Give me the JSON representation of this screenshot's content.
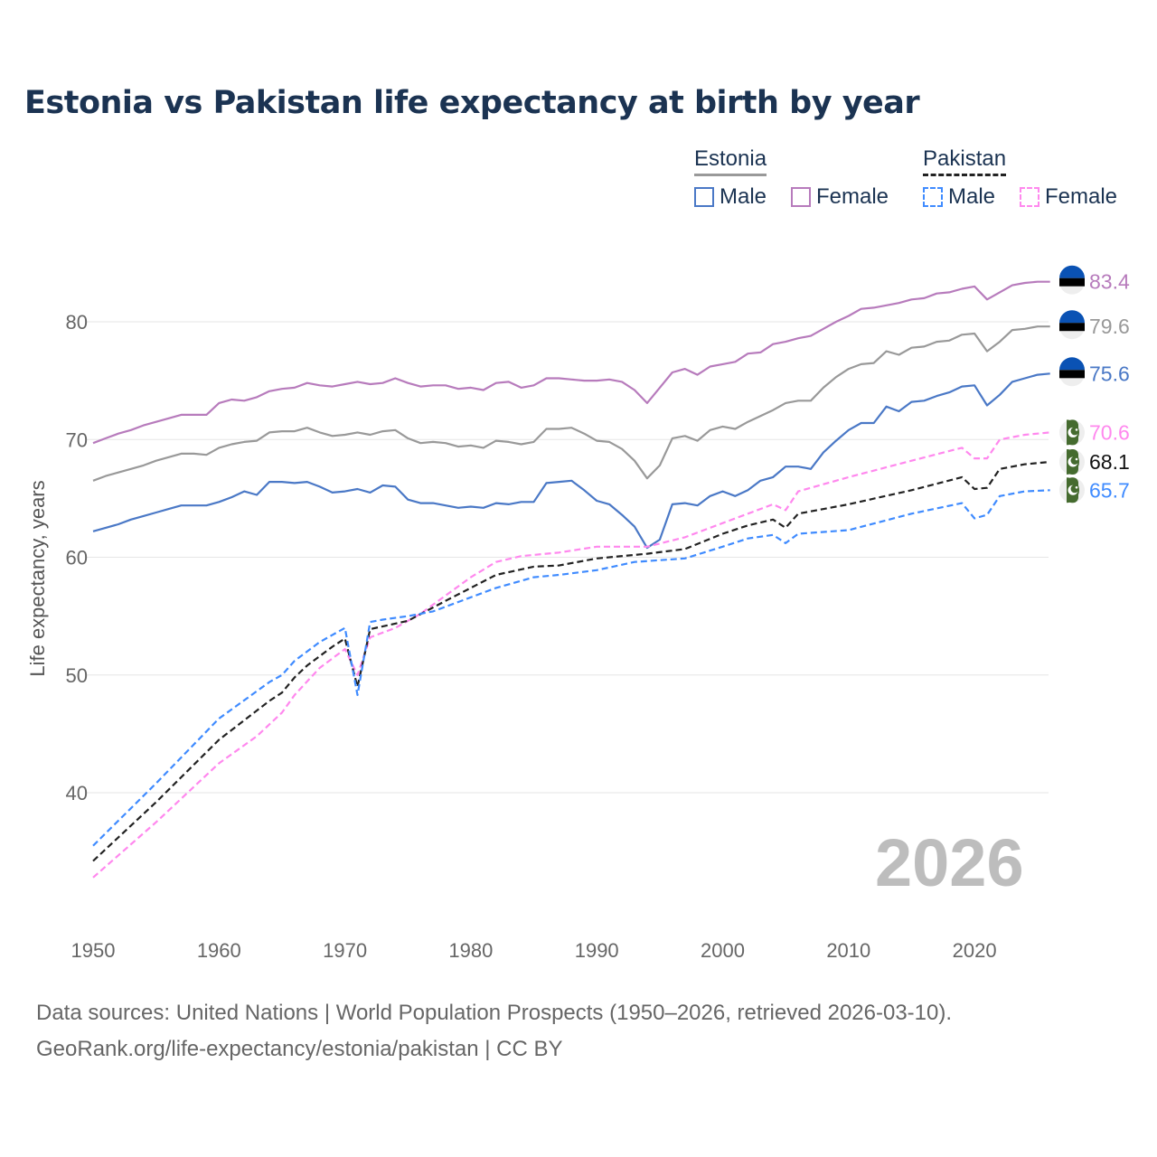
{
  "chart_data": {
    "type": "line",
    "title": "Estonia vs Pakistan life expectancy at birth by year",
    "xlabel": "",
    "ylabel": "Life expectancy, years",
    "xlim": [
      1950,
      2026
    ],
    "ylim": [
      30,
      87
    ],
    "x_ticks": [
      1950,
      1960,
      1970,
      1980,
      1990,
      2000,
      2010,
      2020
    ],
    "y_ticks": [
      40,
      50,
      60,
      70,
      80
    ],
    "grid": true,
    "current_year_label": "2026",
    "legend": {
      "placement": "top-right",
      "groups": [
        {
          "name": "Estonia",
          "color": "#999999",
          "dashed": false,
          "items": [
            {
              "label": "Male",
              "color": "#4a78c6"
            },
            {
              "label": "Female",
              "color": "#b77bbc"
            }
          ]
        },
        {
          "name": "Pakistan",
          "color": "#222222",
          "dashed": true,
          "items": [
            {
              "label": "Male",
              "color": "#3f8bff"
            },
            {
              "label": "Female",
              "color": "#ff88ee"
            }
          ]
        }
      ]
    },
    "series": [
      {
        "name": "Estonia Female",
        "country": "Estonia",
        "color": "#b77bbc",
        "dashed": false,
        "end_label": "83.4",
        "x": [
          1950,
          1951,
          1952,
          1953,
          1954,
          1955,
          1956,
          1957,
          1958,
          1959,
          1960,
          1961,
          1962,
          1963,
          1964,
          1965,
          1966,
          1967,
          1968,
          1969,
          1970,
          1971,
          1972,
          1973,
          1974,
          1975,
          1976,
          1977,
          1978,
          1979,
          1980,
          1981,
          1982,
          1983,
          1984,
          1985,
          1986,
          1987,
          1988,
          1989,
          1990,
          1991,
          1992,
          1993,
          1994,
          1995,
          1996,
          1997,
          1998,
          1999,
          2000,
          2001,
          2002,
          2003,
          2004,
          2005,
          2006,
          2007,
          2008,
          2009,
          2010,
          2011,
          2012,
          2013,
          2014,
          2015,
          2016,
          2017,
          2018,
          2019,
          2020,
          2021,
          2022,
          2023,
          2024,
          2025,
          2026
        ],
        "y": [
          69.7,
          70.1,
          70.5,
          70.8,
          71.2,
          71.5,
          71.8,
          72.1,
          72.1,
          72.1,
          73.1,
          73.4,
          73.3,
          73.6,
          74.1,
          74.3,
          74.4,
          74.8,
          74.6,
          74.5,
          74.7,
          74.9,
          74.7,
          74.8,
          75.2,
          74.8,
          74.5,
          74.6,
          74.6,
          74.3,
          74.4,
          74.2,
          74.8,
          74.9,
          74.4,
          74.6,
          75.2,
          75.2,
          75.1,
          75.0,
          75.0,
          75.1,
          74.9,
          74.2,
          73.1,
          74.4,
          75.7,
          76.0,
          75.5,
          76.2,
          76.4,
          76.6,
          77.3,
          77.4,
          78.1,
          78.3,
          78.6,
          78.8,
          79.4,
          80.0,
          80.5,
          81.1,
          81.2,
          81.4,
          81.6,
          81.9,
          82.0,
          82.4,
          82.5,
          82.8,
          83.0,
          81.9,
          82.5,
          83.1,
          83.3,
          83.4,
          83.4
        ]
      },
      {
        "name": "Estonia",
        "country": "Estonia",
        "color": "#999999",
        "dashed": false,
        "end_label": "79.6",
        "x": [
          1950,
          1951,
          1952,
          1953,
          1954,
          1955,
          1956,
          1957,
          1958,
          1959,
          1960,
          1961,
          1962,
          1963,
          1964,
          1965,
          1966,
          1967,
          1968,
          1969,
          1970,
          1971,
          1972,
          1973,
          1974,
          1975,
          1976,
          1977,
          1978,
          1979,
          1980,
          1981,
          1982,
          1983,
          1984,
          1985,
          1986,
          1987,
          1988,
          1989,
          1990,
          1991,
          1992,
          1993,
          1994,
          1995,
          1996,
          1997,
          1998,
          1999,
          2000,
          2001,
          2002,
          2003,
          2004,
          2005,
          2006,
          2007,
          2008,
          2009,
          2010,
          2011,
          2012,
          2013,
          2014,
          2015,
          2016,
          2017,
          2018,
          2019,
          2020,
          2021,
          2022,
          2023,
          2024,
          2025,
          2026
        ],
        "y": [
          66.5,
          66.9,
          67.2,
          67.5,
          67.8,
          68.2,
          68.5,
          68.8,
          68.8,
          68.7,
          69.3,
          69.6,
          69.8,
          69.9,
          70.6,
          70.7,
          70.7,
          71.0,
          70.6,
          70.3,
          70.4,
          70.6,
          70.4,
          70.7,
          70.8,
          70.1,
          69.7,
          69.8,
          69.7,
          69.4,
          69.5,
          69.3,
          69.9,
          69.8,
          69.6,
          69.8,
          70.9,
          70.9,
          71.0,
          70.5,
          69.9,
          69.8,
          69.2,
          68.2,
          66.7,
          67.8,
          70.1,
          70.3,
          69.9,
          70.8,
          71.1,
          70.9,
          71.5,
          72.0,
          72.5,
          73.1,
          73.3,
          73.3,
          74.4,
          75.3,
          76.0,
          76.4,
          76.5,
          77.5,
          77.2,
          77.8,
          77.9,
          78.3,
          78.4,
          78.9,
          79.0,
          77.5,
          78.3,
          79.3,
          79.4,
          79.6,
          79.6
        ]
      },
      {
        "name": "Estonia Male",
        "country": "Estonia",
        "color": "#4a78c6",
        "dashed": false,
        "end_label": "75.6",
        "x": [
          1950,
          1951,
          1952,
          1953,
          1954,
          1955,
          1956,
          1957,
          1958,
          1959,
          1960,
          1961,
          1962,
          1963,
          1964,
          1965,
          1966,
          1967,
          1968,
          1969,
          1970,
          1971,
          1972,
          1973,
          1974,
          1975,
          1976,
          1977,
          1978,
          1979,
          1980,
          1981,
          1982,
          1983,
          1984,
          1985,
          1986,
          1987,
          1988,
          1989,
          1990,
          1991,
          1992,
          1993,
          1994,
          1995,
          1996,
          1997,
          1998,
          1999,
          2000,
          2001,
          2002,
          2003,
          2004,
          2005,
          2006,
          2007,
          2008,
          2009,
          2010,
          2011,
          2012,
          2013,
          2014,
          2015,
          2016,
          2017,
          2018,
          2019,
          2020,
          2021,
          2022,
          2023,
          2024,
          2025,
          2026
        ],
        "y": [
          62.2,
          62.5,
          62.8,
          63.2,
          63.5,
          63.8,
          64.1,
          64.4,
          64.4,
          64.4,
          64.7,
          65.1,
          65.6,
          65.3,
          66.4,
          66.4,
          66.3,
          66.4,
          66.0,
          65.5,
          65.6,
          65.8,
          65.5,
          66.1,
          66.0,
          64.9,
          64.6,
          64.6,
          64.4,
          64.2,
          64.3,
          64.2,
          64.6,
          64.5,
          64.7,
          64.7,
          66.3,
          66.4,
          66.5,
          65.7,
          64.8,
          64.5,
          63.6,
          62.6,
          60.8,
          61.5,
          64.5,
          64.6,
          64.4,
          65.2,
          65.6,
          65.2,
          65.7,
          66.5,
          66.8,
          67.7,
          67.7,
          67.5,
          68.9,
          69.9,
          70.8,
          71.4,
          71.4,
          72.8,
          72.4,
          73.2,
          73.3,
          73.7,
          74.0,
          74.5,
          74.6,
          72.9,
          73.8,
          74.9,
          75.2,
          75.5,
          75.6
        ]
      },
      {
        "name": "Pakistan Female",
        "country": "Pakistan",
        "color": "#ff88ee",
        "dashed": true,
        "end_label": "70.6",
        "x": [
          1950,
          1955,
          1960,
          1963,
          1965,
          1966,
          1968,
          1970,
          1971,
          1972,
          1974,
          1976,
          1980,
          1982,
          1984,
          1987,
          1990,
          1994,
          1997,
          2000,
          2004,
          2005,
          2006,
          2010,
          2015,
          2019,
          2020,
          2021,
          2022,
          2024,
          2026
        ],
        "y": [
          32.8,
          37.5,
          42.5,
          44.8,
          46.8,
          48.3,
          50.6,
          52.2,
          50.0,
          53.2,
          54.0,
          55.2,
          58.3,
          59.6,
          60.1,
          60.4,
          60.9,
          60.9,
          61.7,
          62.9,
          64.5,
          64.0,
          65.6,
          66.8,
          68.2,
          69.3,
          68.4,
          68.4,
          70.0,
          70.4,
          70.6
        ]
      },
      {
        "name": "Pakistan",
        "country": "Pakistan",
        "color": "#222222",
        "dashed": true,
        "end_label": "68.1",
        "x": [
          1950,
          1955,
          1960,
          1964,
          1965,
          1966,
          1967,
          1968,
          1969,
          1970,
          1971,
          1972,
          1975,
          1978,
          1980,
          1982,
          1985,
          1987,
          1990,
          1994,
          1997,
          2000,
          2002,
          2004,
          2005,
          2006,
          2010,
          2015,
          2019,
          2020,
          2021,
          2022,
          2024,
          2026
        ],
        "y": [
          34.2,
          39.2,
          44.5,
          47.8,
          48.5,
          49.8,
          50.8,
          51.6,
          52.4,
          53.1,
          49.0,
          53.9,
          54.6,
          56.3,
          57.4,
          58.5,
          59.2,
          59.3,
          59.9,
          60.3,
          60.7,
          62.0,
          62.7,
          63.2,
          62.5,
          63.7,
          64.5,
          65.7,
          66.8,
          65.8,
          65.9,
          67.5,
          67.9,
          68.1
        ]
      },
      {
        "name": "Pakistan Male",
        "country": "Pakistan",
        "color": "#3f8bff",
        "dashed": true,
        "end_label": "65.7",
        "x": [
          1950,
          1955,
          1960,
          1964,
          1965,
          1966,
          1968,
          1970,
          1971,
          1972,
          1973,
          1975,
          1977,
          1980,
          1982,
          1985,
          1987,
          1990,
          1993,
          1997,
          2000,
          2002,
          2004,
          2005,
          2006,
          2010,
          2015,
          2019,
          2020,
          2021,
          2022,
          2024,
          2026
        ],
        "y": [
          35.5,
          40.8,
          46.3,
          49.4,
          50.0,
          51.2,
          52.8,
          54.0,
          48.3,
          54.5,
          54.7,
          55.0,
          55.4,
          56.6,
          57.4,
          58.3,
          58.5,
          58.9,
          59.6,
          59.9,
          60.9,
          61.6,
          61.9,
          61.2,
          62.0,
          62.3,
          63.7,
          64.6,
          63.3,
          63.6,
          65.2,
          65.6,
          65.7
        ]
      }
    ]
  },
  "footer": {
    "line1": "Data sources: United Nations | World Population Prospects (1950–2026, retrieved 2026-03-10).",
    "line2": "GeoRank.org/life-expectancy/estonia/pakistan | CC BY"
  }
}
